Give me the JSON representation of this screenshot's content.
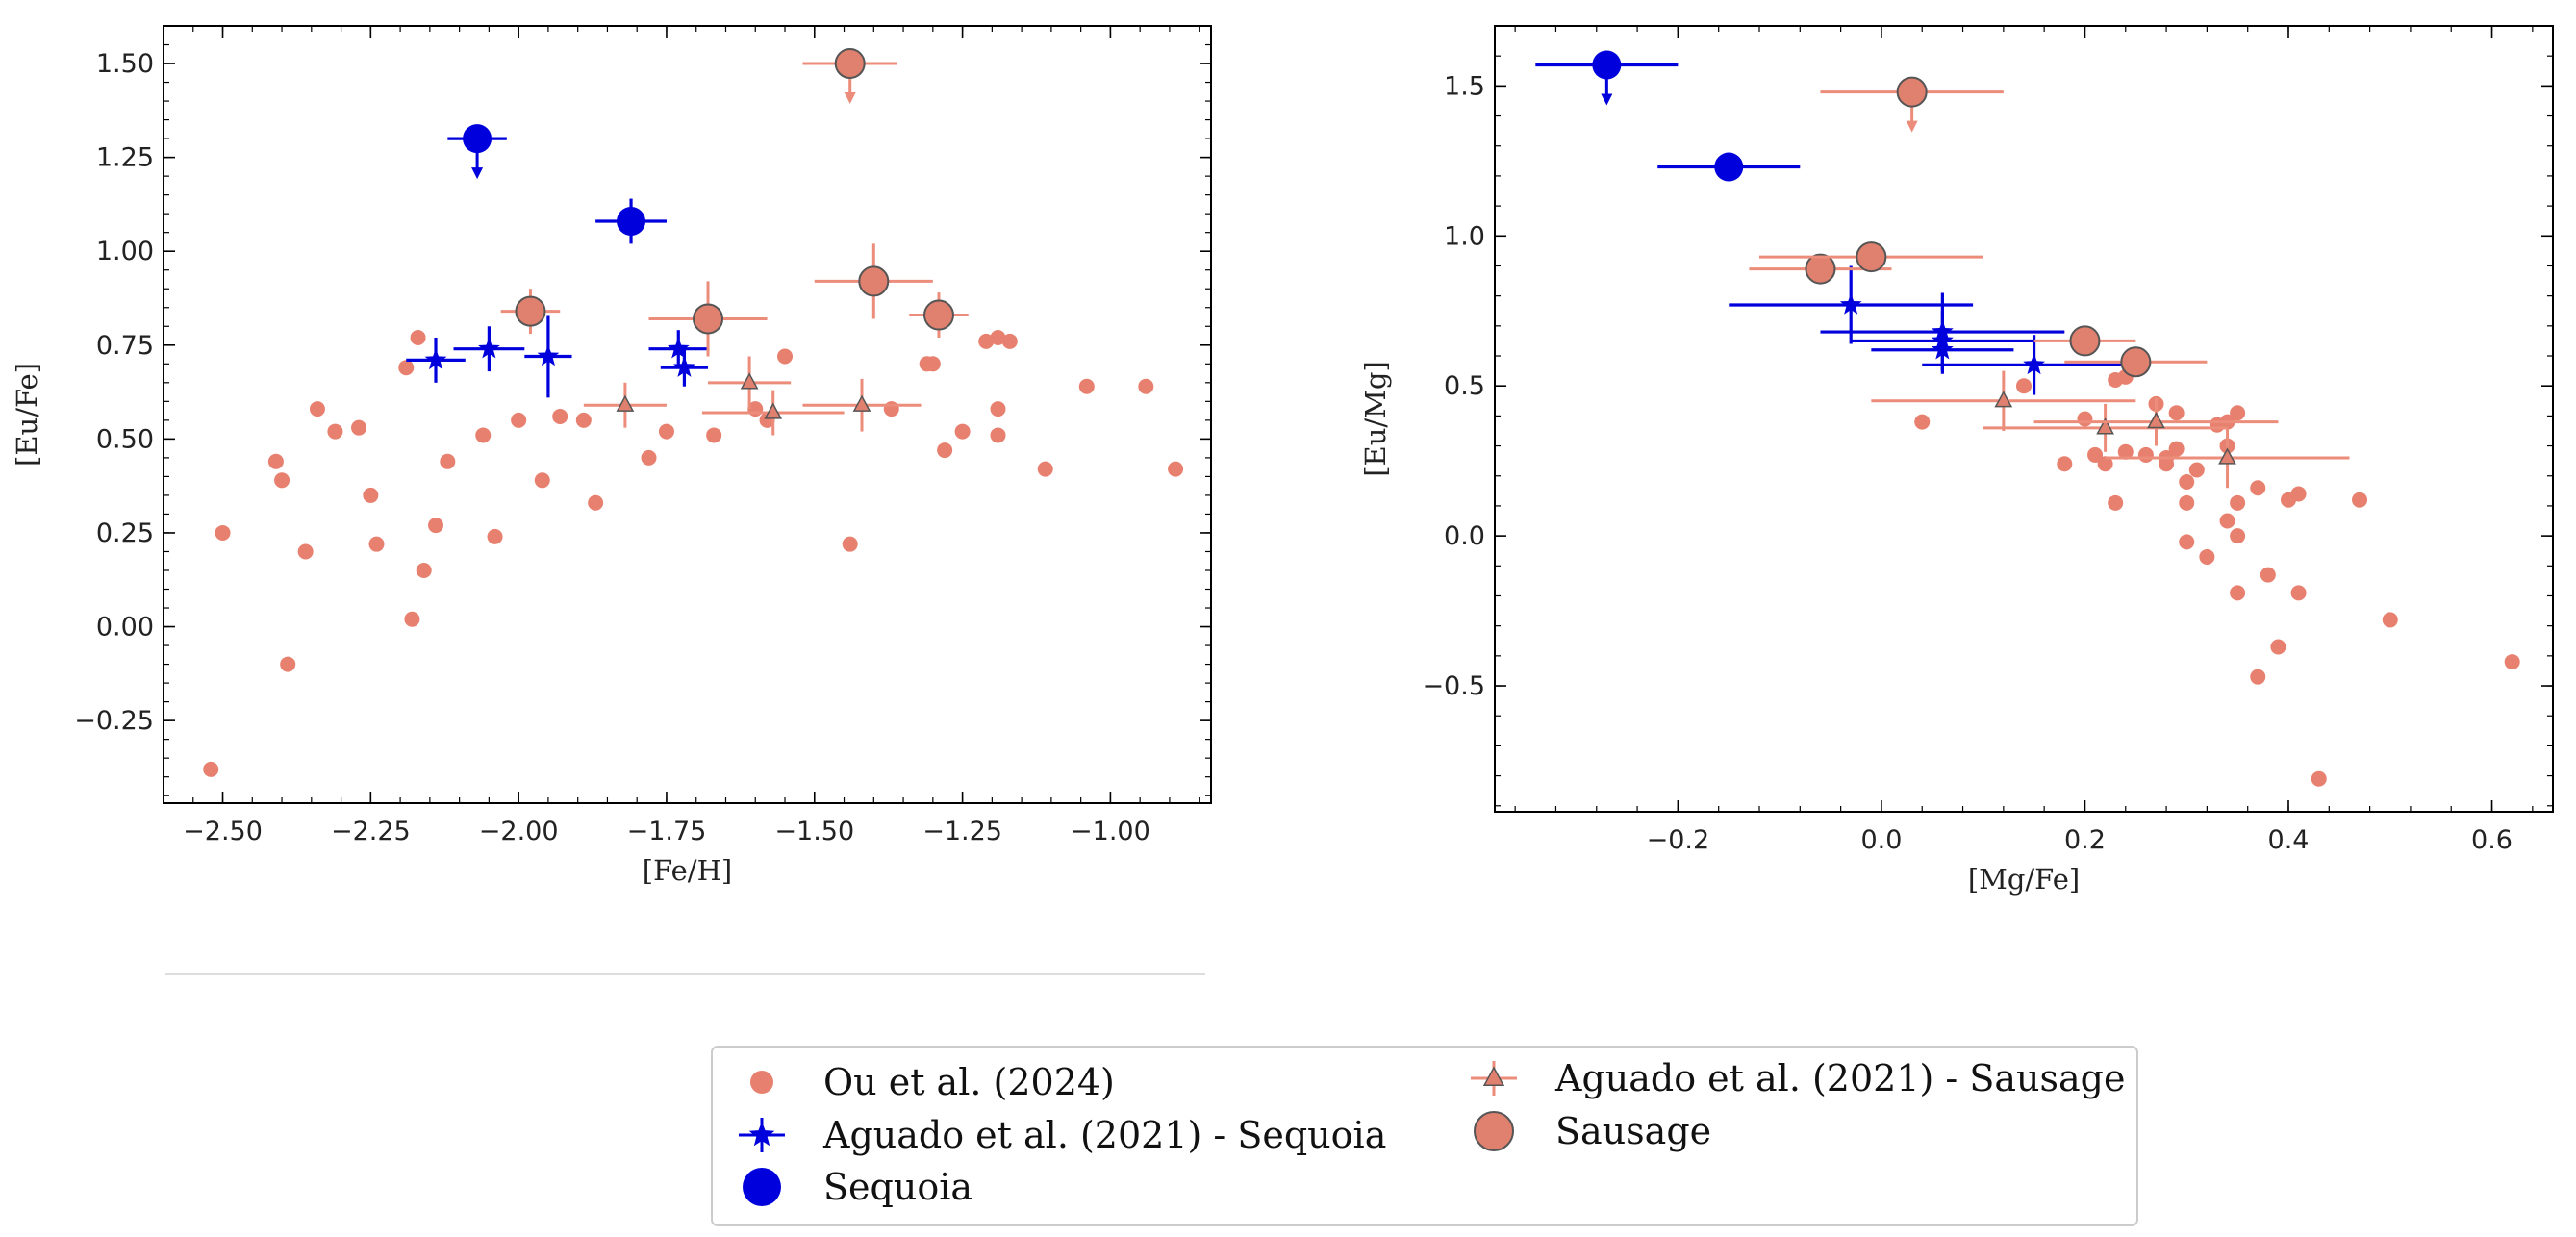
{
  "colors": {
    "ou": "#e8806f",
    "sausage_fill": "#e0806e",
    "sausage_ecolor": "#ec8c7a",
    "sequoia": "#0000dd",
    "edge": "#555555",
    "axes": "#000000"
  },
  "chart_data": [
    {
      "type": "scatter",
      "panel": "left",
      "xlabel": "[Fe/H]",
      "ylabel": "[Eu/Fe]",
      "xlim": [
        -2.6,
        -0.83
      ],
      "ylim": [
        -0.47,
        1.6
      ],
      "xticks": [
        -2.5,
        -2.25,
        -2.0,
        -1.75,
        -1.5,
        -1.25,
        -1.0
      ],
      "xtick_labels": [
        "−2.50",
        "−2.25",
        "−2.00",
        "−1.75",
        "−1.50",
        "−1.25",
        "−1.00"
      ],
      "yticks": [
        -0.25,
        0.0,
        0.25,
        0.5,
        0.75,
        1.0,
        1.25,
        1.5
      ],
      "ytick_labels": [
        "−0.25",
        "0.00",
        "0.25",
        "0.50",
        "0.75",
        "1.00",
        "1.25",
        "1.50"
      ],
      "series": [
        {
          "key": "ou",
          "name": "Ou et al. (2024)",
          "points": [
            [
              -2.52,
              -0.38
            ],
            [
              -2.5,
              0.25
            ],
            [
              -2.41,
              0.44
            ],
            [
              -2.4,
              0.39
            ],
            [
              -2.39,
              -0.1
            ],
            [
              -2.36,
              0.2
            ],
            [
              -2.34,
              0.58
            ],
            [
              -2.31,
              0.52
            ],
            [
              -2.27,
              0.53
            ],
            [
              -2.25,
              0.35
            ],
            [
              -2.24,
              0.22
            ],
            [
              -2.19,
              0.69
            ],
            [
              -2.18,
              0.02
            ],
            [
              -2.17,
              0.77
            ],
            [
              -2.16,
              0.15
            ],
            [
              -2.14,
              0.27
            ],
            [
              -2.12,
              0.44
            ],
            [
              -2.06,
              0.51
            ],
            [
              -2.04,
              0.24
            ],
            [
              -2.0,
              0.55
            ],
            [
              -1.96,
              0.39
            ],
            [
              -1.93,
              0.56
            ],
            [
              -1.89,
              0.55
            ],
            [
              -1.87,
              0.33
            ],
            [
              -1.78,
              0.45
            ],
            [
              -1.75,
              0.52
            ],
            [
              -1.67,
              0.51
            ],
            [
              -1.6,
              0.58
            ],
            [
              -1.58,
              0.55
            ],
            [
              -1.55,
              0.72
            ],
            [
              -1.44,
              0.22
            ],
            [
              -1.37,
              0.58
            ],
            [
              -1.31,
              0.7
            ],
            [
              -1.3,
              0.7
            ],
            [
              -1.28,
              0.47
            ],
            [
              -1.25,
              0.52
            ],
            [
              -1.21,
              0.76
            ],
            [
              -1.19,
              0.77
            ],
            [
              -1.19,
              0.58
            ],
            [
              -1.19,
              0.51
            ],
            [
              -1.17,
              0.76
            ],
            [
              -1.11,
              0.42
            ],
            [
              -1.04,
              0.64
            ],
            [
              -0.94,
              0.64
            ],
            [
              -0.89,
              0.42
            ]
          ]
        },
        {
          "key": "aguado_sausage",
          "name": "Aguado et al. (2021) - Sausage",
          "points": [
            {
              "x": -1.82,
              "y": 0.59,
              "xerr": 0.07,
              "yerr": 0.06
            },
            {
              "x": -1.61,
              "y": 0.65,
              "xerr": 0.07,
              "yerr": 0.07
            },
            {
              "x": -1.57,
              "y": 0.57,
              "xerr": 0.12,
              "yerr": 0.06
            },
            {
              "x": -1.42,
              "y": 0.59,
              "xerr": 0.1,
              "yerr": 0.07
            }
          ]
        },
        {
          "key": "aguado_sequoia",
          "name": "Aguado et al. (2021) - Sequoia",
          "points": [
            {
              "x": -2.14,
              "y": 0.71,
              "xerr": 0.05,
              "yerr": 0.06
            },
            {
              "x": -2.05,
              "y": 0.74,
              "xerr": 0.06,
              "yerr": 0.06
            },
            {
              "x": -1.95,
              "y": 0.72,
              "xerr": 0.04,
              "yerr": 0.11
            },
            {
              "x": -1.73,
              "y": 0.74,
              "xerr": 0.05,
              "yerr": 0.05
            },
            {
              "x": -1.72,
              "y": 0.69,
              "xerr": 0.04,
              "yerr": 0.05
            }
          ]
        },
        {
          "key": "sausage",
          "name": "Sausage",
          "points": [
            {
              "x": -1.98,
              "y": 0.84,
              "xerr": 0.05,
              "yerr": 0.06
            },
            {
              "x": -1.68,
              "y": 0.82,
              "xerr": 0.1,
              "yerr": 0.1
            },
            {
              "x": -1.4,
              "y": 0.92,
              "xerr": 0.1,
              "yerr": 0.1
            },
            {
              "x": -1.29,
              "y": 0.83,
              "xerr": 0.05,
              "yerr": 0.06
            },
            {
              "x": -1.44,
              "y": 1.5,
              "xerr": 0.08,
              "yerr": 0,
              "upper_limit": true
            }
          ]
        },
        {
          "key": "sequoia",
          "name": "Sequoia",
          "points": [
            {
              "x": -1.81,
              "y": 1.08,
              "xerr": 0.06,
              "yerr": 0.06
            },
            {
              "x": -2.07,
              "y": 1.3,
              "xerr": 0.05,
              "yerr": 0,
              "upper_limit": true
            }
          ]
        }
      ]
    },
    {
      "type": "scatter",
      "panel": "right",
      "xlabel": "[Mg/Fe]",
      "ylabel": "[Eu/Mg]",
      "xlim": [
        -0.38,
        0.66
      ],
      "ylim": [
        -0.92,
        1.7
      ],
      "xticks": [
        -0.2,
        0.0,
        0.2,
        0.4,
        0.6
      ],
      "xtick_labels": [
        "−0.2",
        "0.0",
        "0.2",
        "0.4",
        "0.6"
      ],
      "yticks": [
        -0.5,
        0.0,
        0.5,
        1.0,
        1.5
      ],
      "ytick_labels": [
        "−0.5",
        "0.0",
        "0.5",
        "1.0",
        "1.5"
      ],
      "series": [
        {
          "key": "ou",
          "name": "Ou et al. (2024)",
          "points": [
            [
              0.04,
              0.38
            ],
            [
              0.14,
              0.5
            ],
            [
              0.18,
              0.24
            ],
            [
              0.2,
              0.39
            ],
            [
              0.21,
              0.27
            ],
            [
              0.22,
              0.24
            ],
            [
              0.23,
              0.11
            ],
            [
              0.23,
              0.52
            ],
            [
              0.24,
              0.53
            ],
            [
              0.24,
              0.28
            ],
            [
              0.25,
              0.57
            ],
            [
              0.26,
              0.27
            ],
            [
              0.27,
              0.44
            ],
            [
              0.28,
              0.26
            ],
            [
              0.28,
              0.24
            ],
            [
              0.29,
              0.41
            ],
            [
              0.29,
              0.29
            ],
            [
              0.3,
              0.18
            ],
            [
              0.3,
              0.11
            ],
            [
              0.3,
              -0.02
            ],
            [
              0.31,
              0.22
            ],
            [
              0.32,
              -0.07
            ],
            [
              0.33,
              0.37
            ],
            [
              0.34,
              0.05
            ],
            [
              0.34,
              0.3
            ],
            [
              0.34,
              0.38
            ],
            [
              0.35,
              0.41
            ],
            [
              0.35,
              0.11
            ],
            [
              0.35,
              0.0
            ],
            [
              0.35,
              -0.19
            ],
            [
              0.37,
              0.16
            ],
            [
              0.37,
              -0.47
            ],
            [
              0.38,
              -0.13
            ],
            [
              0.39,
              -0.37
            ],
            [
              0.4,
              0.12
            ],
            [
              0.41,
              0.14
            ],
            [
              0.41,
              -0.19
            ],
            [
              0.43,
              -0.81
            ],
            [
              0.47,
              0.12
            ],
            [
              0.5,
              -0.28
            ],
            [
              0.62,
              -0.42
            ]
          ]
        },
        {
          "key": "aguado_sausage",
          "name": "Aguado et al. (2021) - Sausage",
          "points": [
            {
              "x": 0.12,
              "y": 0.45,
              "xerr": 0.13,
              "yerr": 0.1
            },
            {
              "x": 0.22,
              "y": 0.36,
              "xerr": 0.12,
              "yerr": 0.08
            },
            {
              "x": 0.27,
              "y": 0.38,
              "xerr": 0.12,
              "yerr": 0.08
            },
            {
              "x": 0.34,
              "y": 0.26,
              "xerr": 0.12,
              "yerr": 0.1
            }
          ]
        },
        {
          "key": "aguado_sequoia",
          "name": "Aguado et al. (2021) - Sequoia",
          "points": [
            {
              "x": -0.03,
              "y": 0.77,
              "xerr": 0.12,
              "yerr": 0.13
            },
            {
              "x": 0.06,
              "y": 0.68,
              "xerr": 0.12,
              "yerr": 0.13
            },
            {
              "x": 0.06,
              "y": 0.65,
              "xerr": 0.09,
              "yerr": 0.1
            },
            {
              "x": 0.06,
              "y": 0.62,
              "xerr": 0.07,
              "yerr": 0.08
            },
            {
              "x": 0.15,
              "y": 0.57,
              "xerr": 0.11,
              "yerr": 0.1
            }
          ]
        },
        {
          "key": "sausage",
          "name": "Sausage",
          "points": [
            {
              "x": -0.06,
              "y": 0.89,
              "xerr": 0.07,
              "yerr": 0.04
            },
            {
              "x": -0.01,
              "y": 0.93,
              "xerr": 0.11,
              "yerr": 0.04
            },
            {
              "x": 0.2,
              "y": 0.65,
              "xerr": 0.05,
              "yerr": 0.04
            },
            {
              "x": 0.25,
              "y": 0.58,
              "xerr": 0.07,
              "yerr": 0.04
            },
            {
              "x": 0.03,
              "y": 1.48,
              "xerr": 0.09,
              "yerr": 0,
              "upper_limit": true
            }
          ]
        },
        {
          "key": "sequoia",
          "name": "Sequoia",
          "points": [
            {
              "x": -0.15,
              "y": 1.23,
              "xerr": 0.07,
              "yerr": 0.03
            },
            {
              "x": -0.27,
              "y": 1.57,
              "xerr": 0.07,
              "yerr": 0,
              "upper_limit": true
            }
          ]
        }
      ]
    }
  ],
  "legend": {
    "placement": "bottom-center",
    "entries": [
      {
        "key": "ou",
        "label": "Ou et al. (2024)"
      },
      {
        "key": "aguado_sequoia",
        "label": "Aguado et al. (2021) - Sequoia"
      },
      {
        "key": "sequoia",
        "label": "Sequoia"
      },
      {
        "key": "aguado_sausage",
        "label": "Aguado et al. (2021) - Sausage"
      },
      {
        "key": "sausage",
        "label": "Sausage"
      }
    ]
  }
}
